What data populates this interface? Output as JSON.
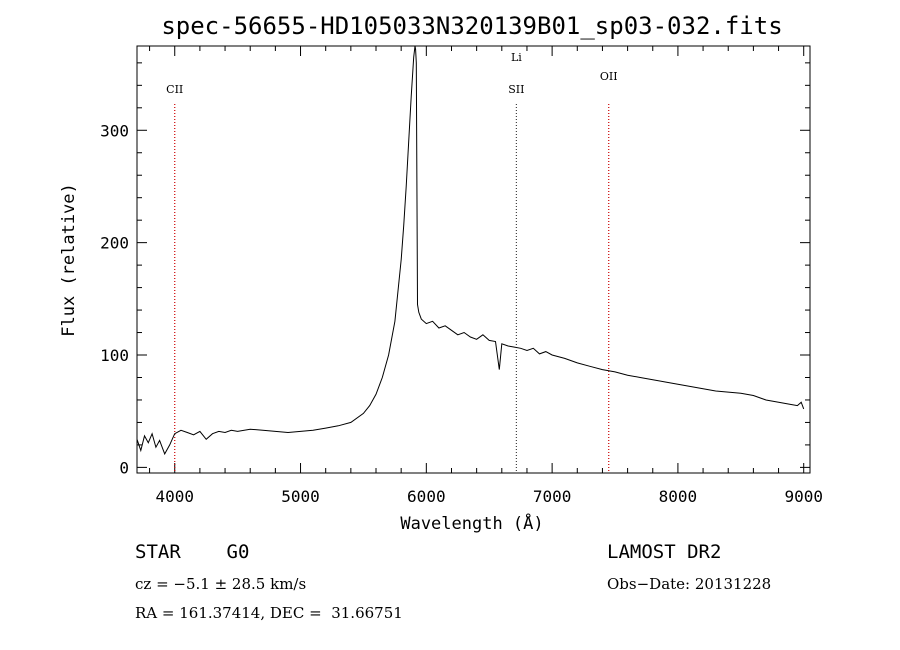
{
  "chart_data": {
    "type": "line",
    "title": "spec-56655-HD105033N320139B01_sp03-032.fits",
    "xlabel": "Wavelength (Å)",
    "ylabel": "Flux (relative)",
    "xlim": [
      3700,
      9050
    ],
    "ylim": [
      -5,
      375
    ],
    "x_ticks": [
      4000,
      5000,
      6000,
      7000,
      8000,
      9000
    ],
    "y_ticks": [
      0,
      100,
      200,
      300
    ],
    "grid": false,
    "series": [
      {
        "x": [
          3700,
          3730,
          3760,
          3790,
          3820,
          3850,
          3880,
          3920,
          3960,
          4000,
          4050,
          4100,
          4150,
          4200,
          4250,
          4300,
          4350,
          4400,
          4450,
          4500,
          4600,
          4700,
          4800,
          4900,
          5000,
          5100,
          5200,
          5300,
          5400,
          5500,
          5550,
          5600,
          5650,
          5700,
          5750,
          5800,
          5820,
          5840,
          5860,
          5880,
          5900,
          5910,
          5915,
          5920,
          5930,
          5940,
          5960,
          6000,
          6050,
          6100,
          6150,
          6200,
          6250,
          6300,
          6350,
          6400,
          6450,
          6500,
          6550,
          6580,
          6600,
          6650,
          6700,
          6750,
          6800,
          6850,
          6900,
          6950,
          7000,
          7100,
          7200,
          7300,
          7400,
          7500,
          7600,
          7700,
          7800,
          7900,
          8000,
          8100,
          8200,
          8300,
          8400,
          8500,
          8600,
          8700,
          8800,
          8900,
          8950,
          8980,
          9000
        ],
        "y": [
          25,
          15,
          28,
          22,
          30,
          18,
          24,
          12,
          20,
          30,
          33,
          31,
          29,
          32,
          25,
          30,
          32,
          31,
          33,
          32,
          34,
          33,
          32,
          31,
          32,
          33,
          35,
          37,
          40,
          48,
          55,
          65,
          80,
          100,
          130,
          185,
          215,
          250,
          290,
          330,
          365,
          375,
          372,
          360,
          145,
          138,
          132,
          128,
          130,
          124,
          126,
          122,
          118,
          120,
          116,
          114,
          118,
          113,
          112,
          87,
          110,
          108,
          107,
          106,
          104,
          106,
          101,
          103,
          100,
          97,
          93,
          90,
          87,
          85,
          82,
          80,
          78,
          76,
          74,
          72,
          70,
          68,
          67,
          66,
          64,
          60,
          58,
          56,
          55,
          58,
          52
        ]
      }
    ],
    "line_markers": [
      {
        "x": 4000,
        "label": "CII",
        "color": "#cc0000",
        "label_row": 2
      },
      {
        "x": 6716,
        "label": "Li",
        "color": "#444444",
        "label_row": 1
      },
      {
        "x": 6716,
        "label": "SII",
        "color": "#444444",
        "label_row": 2
      },
      {
        "x": 7450,
        "label": "OII",
        "color": "#cc0000",
        "label_row": 1.6
      }
    ]
  },
  "info": {
    "object_class": "STAR    G0",
    "survey": "LAMOST DR2",
    "cz": "cz = −5.1 ± 28.5 km/s",
    "obs_date": "Obs−Date: 20131228",
    "coords": "RA = 161.37414, DEC =  31.66751"
  }
}
